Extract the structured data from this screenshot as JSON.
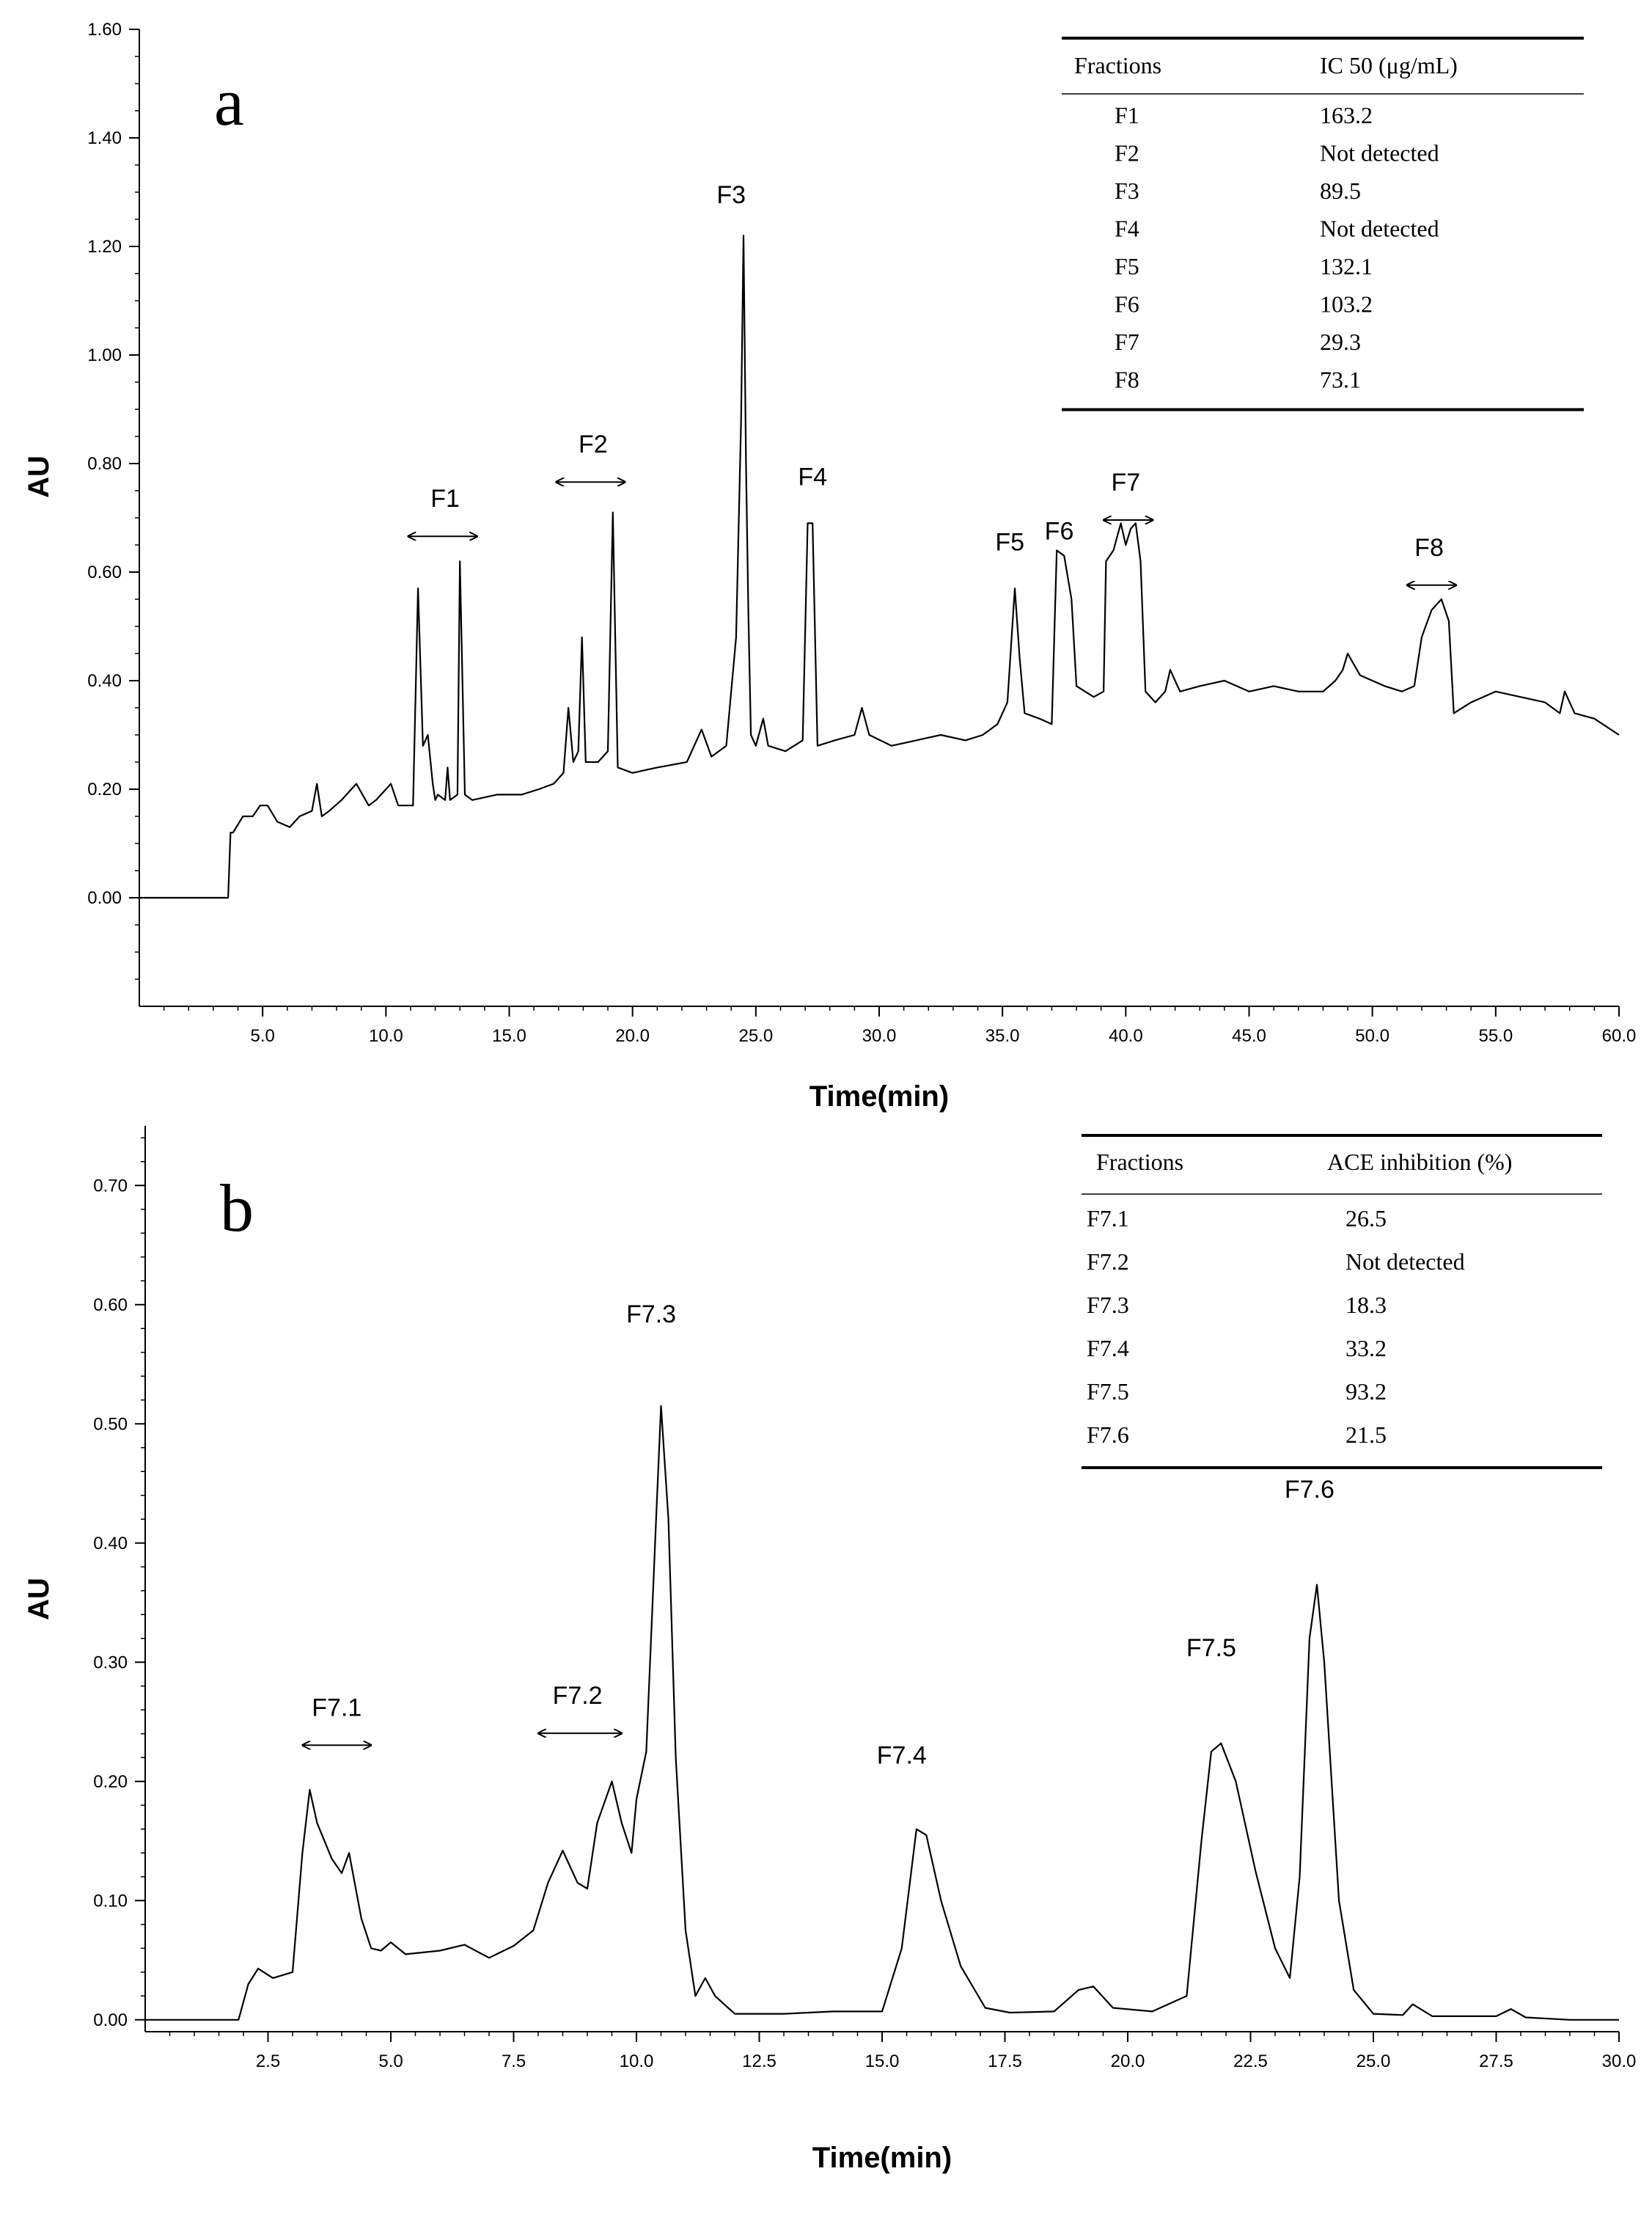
{
  "chart_data": [
    {
      "type": "line",
      "panel_label": "a",
      "xlabel": "Time(min)",
      "ylabel": "AU",
      "xlim": [
        0,
        60
      ],
      "ylim": [
        -0.2,
        1.6
      ],
      "x_tick_labels": [
        "5.0",
        "10.0",
        "15.0",
        "20.0",
        "25.0",
        "30.0",
        "35.0",
        "40.0",
        "45.0",
        "50.0",
        "55.0",
        "60.0"
      ],
      "y_tick_labels": [
        "0.00",
        "0.20",
        "0.40",
        "0.60",
        "0.80",
        "1.00",
        "1.20",
        "1.40",
        "1.60"
      ],
      "series": [
        {
          "x": [
            0,
            1.8,
            3.6,
            3.7,
            3.8,
            4.2,
            4.6,
            4.9,
            5.2,
            5.6,
            6.1,
            6.5,
            7.0,
            7.2,
            7.3,
            7.4,
            7.7,
            8.2,
            8.8,
            9.3,
            9.6,
            10.2,
            10.5,
            11.1,
            11.3,
            11.5,
            11.7,
            11.9,
            12.0,
            12.1,
            12.4,
            12.5,
            12.6,
            12.9,
            13.0,
            13.2,
            13.5,
            14.5,
            15.5,
            16.2,
            16.8,
            17.2,
            17.4,
            17.6,
            17.8,
            17.95,
            18.1,
            18.6,
            19.0,
            19.2,
            19.4,
            20.0,
            21.0,
            22.2,
            22.8,
            23.2,
            23.8,
            24.2,
            24.4,
            24.5,
            24.6,
            24.7,
            24.8,
            25.0,
            25.3,
            25.5,
            26.2,
            26.9,
            27.1,
            27.3,
            27.5,
            28.2,
            29.0,
            29.3,
            29.6,
            30.5,
            31.5,
            32.5,
            33.5,
            34.2,
            34.8,
            35.2,
            35.5,
            35.7,
            35.9,
            36.5,
            37.0,
            37.2,
            37.5,
            37.8,
            38.0,
            38.7,
            39.1,
            39.2,
            39.5,
            39.8,
            40.0,
            40.2,
            40.4,
            40.6,
            40.8,
            41.2,
            41.6,
            41.8,
            42.2,
            43.0,
            44.0,
            45.0,
            46.0,
            47.0,
            48.0,
            48.5,
            48.8,
            49.0,
            49.5,
            50.5,
            51.2,
            51.7,
            52.0,
            52.4,
            52.8,
            53.1,
            53.3,
            54.0,
            55.0,
            56.0,
            57.0,
            57.6,
            57.8,
            58.2,
            59.0,
            60.0
          ],
          "y": [
            0.0,
            0.0,
            0.0,
            0.12,
            0.12,
            0.15,
            0.15,
            0.17,
            0.17,
            0.14,
            0.13,
            0.15,
            0.16,
            0.21,
            0.18,
            0.15,
            0.16,
            0.18,
            0.21,
            0.17,
            0.18,
            0.21,
            0.17,
            0.17,
            0.57,
            0.28,
            0.3,
            0.21,
            0.18,
            0.19,
            0.18,
            0.24,
            0.18,
            0.19,
            0.62,
            0.19,
            0.18,
            0.19,
            0.19,
            0.2,
            0.21,
            0.23,
            0.35,
            0.25,
            0.27,
            0.48,
            0.25,
            0.25,
            0.27,
            0.71,
            0.24,
            0.23,
            0.24,
            0.25,
            0.31,
            0.26,
            0.28,
            0.48,
            0.88,
            1.22,
            0.8,
            0.52,
            0.3,
            0.28,
            0.33,
            0.28,
            0.27,
            0.29,
            0.69,
            0.69,
            0.28,
            0.29,
            0.3,
            0.35,
            0.3,
            0.28,
            0.29,
            0.3,
            0.29,
            0.3,
            0.32,
            0.36,
            0.57,
            0.44,
            0.34,
            0.33,
            0.32,
            0.64,
            0.63,
            0.55,
            0.39,
            0.37,
            0.38,
            0.62,
            0.64,
            0.69,
            0.65,
            0.68,
            0.69,
            0.62,
            0.38,
            0.36,
            0.38,
            0.42,
            0.38,
            0.39,
            0.4,
            0.38,
            0.39,
            0.38,
            0.38,
            0.4,
            0.42,
            0.45,
            0.41,
            0.39,
            0.38,
            0.39,
            0.48,
            0.53,
            0.55,
            0.51,
            0.34,
            0.36,
            0.38,
            0.37,
            0.36,
            0.34,
            0.38,
            0.34,
            0.33,
            0.3
          ]
        }
      ],
      "peak_labels": [
        {
          "text": "F1",
          "x": 12.4,
          "y": 0.72,
          "range": [
            10.9,
            13.7
          ]
        },
        {
          "text": "F2",
          "x": 18.4,
          "y": 0.82,
          "range": [
            16.9,
            19.7
          ]
        },
        {
          "text": "F3",
          "x": 24.0,
          "y": 1.28
        },
        {
          "text": "F4",
          "x": 27.3,
          "y": 0.76
        },
        {
          "text": "F5",
          "x": 35.3,
          "y": 0.64
        },
        {
          "text": "F6",
          "x": 37.3,
          "y": 0.66
        },
        {
          "text": "F7",
          "x": 40.0,
          "y": 0.75,
          "range": [
            39.1,
            41.1
          ]
        },
        {
          "text": "F8",
          "x": 52.3,
          "y": 0.63,
          "range": [
            51.4,
            53.4
          ]
        }
      ],
      "table": {
        "headers": [
          "Fractions",
          "IC 50 (μg/mL)"
        ],
        "rows": [
          [
            "F1",
            "163.2"
          ],
          [
            "F2",
            "Not detected"
          ],
          [
            "F3",
            "89.5"
          ],
          [
            "F4",
            "Not detected"
          ],
          [
            "F5",
            "132.1"
          ],
          [
            "F6",
            "103.2"
          ],
          [
            "F7",
            "29.3"
          ],
          [
            "F8",
            "73.1"
          ]
        ]
      }
    },
    {
      "type": "line",
      "panel_label": "b",
      "xlabel": "Time(min)",
      "ylabel": "AU",
      "xlim": [
        0,
        30
      ],
      "ylim": [
        -0.01,
        0.75
      ],
      "x_tick_labels": [
        "2.5",
        "5.0",
        "7.5",
        "10.0",
        "12.5",
        "15.0",
        "17.5",
        "20.0",
        "22.5",
        "25.0",
        "27.5",
        "30.0"
      ],
      "y_tick_labels": [
        "0.00",
        "0.10",
        "0.20",
        "0.30",
        "0.40",
        "0.50",
        "0.60",
        "0.70"
      ],
      "series": [
        {
          "x": [
            0,
            1.9,
            2.1,
            2.3,
            2.6,
            3.0,
            3.2,
            3.35,
            3.5,
            3.8,
            4.0,
            4.15,
            4.4,
            4.6,
            4.8,
            5.0,
            5.3,
            6.0,
            6.5,
            7.0,
            7.5,
            7.9,
            8.2,
            8.5,
            8.8,
            9.0,
            9.2,
            9.5,
            9.7,
            9.9,
            10.0,
            10.2,
            10.4,
            10.5,
            10.65,
            10.8,
            11.0,
            11.2,
            11.4,
            11.6,
            12.0,
            13.0,
            14.0,
            15.0,
            15.4,
            15.7,
            15.9,
            16.2,
            16.6,
            17.1,
            17.6,
            18.5,
            19.0,
            19.3,
            19.7,
            20.5,
            21.2,
            21.5,
            21.7,
            21.9,
            22.2,
            22.6,
            23.0,
            23.3,
            23.5,
            23.7,
            23.85,
            24.0,
            24.3,
            24.6,
            25.0,
            25.6,
            25.8,
            26.2,
            27.5,
            27.8,
            28.1,
            29.0,
            30.0
          ],
          "y": [
            0.0,
            0.0,
            0.03,
            0.043,
            0.035,
            0.04,
            0.14,
            0.193,
            0.165,
            0.135,
            0.123,
            0.14,
            0.085,
            0.06,
            0.058,
            0.065,
            0.055,
            0.058,
            0.063,
            0.052,
            0.062,
            0.075,
            0.115,
            0.142,
            0.115,
            0.11,
            0.165,
            0.2,
            0.165,
            0.14,
            0.185,
            0.225,
            0.42,
            0.515,
            0.42,
            0.22,
            0.075,
            0.02,
            0.035,
            0.02,
            0.005,
            0.005,
            0.007,
            0.007,
            0.06,
            0.16,
            0.155,
            0.1,
            0.045,
            0.01,
            0.006,
            0.007,
            0.025,
            0.028,
            0.01,
            0.007,
            0.02,
            0.15,
            0.225,
            0.232,
            0.2,
            0.125,
            0.06,
            0.035,
            0.12,
            0.32,
            0.365,
            0.3,
            0.1,
            0.025,
            0.005,
            0.004,
            0.013,
            0.003,
            0.003,
            0.009,
            0.002,
            0.0,
            0.0
          ]
        }
      ],
      "peak_labels": [
        {
          "text": "F7.1",
          "x": 3.9,
          "y": 0.255,
          "range": [
            3.2,
            4.6
          ]
        },
        {
          "text": "F7.2",
          "x": 8.8,
          "y": 0.265,
          "range": [
            8.0,
            9.7
          ]
        },
        {
          "text": "F7.3",
          "x": 10.3,
          "y": 0.585
        },
        {
          "text": "F7.4",
          "x": 15.4,
          "y": 0.215
        },
        {
          "text": "F7.5",
          "x": 21.7,
          "y": 0.305
        },
        {
          "text": "F7.6",
          "x": 23.7,
          "y": 0.438
        }
      ],
      "table": {
        "headers": [
          "Fractions",
          "ACE inhibition (%)"
        ],
        "rows": [
          [
            "F7.1",
            "26.5"
          ],
          [
            "F7.2",
            "Not detected"
          ],
          [
            "F7.3",
            "18.3"
          ],
          [
            "F7.4",
            "33.2"
          ],
          [
            "F7.5",
            "93.2"
          ],
          [
            "F7.6",
            "21.5"
          ]
        ]
      }
    }
  ]
}
